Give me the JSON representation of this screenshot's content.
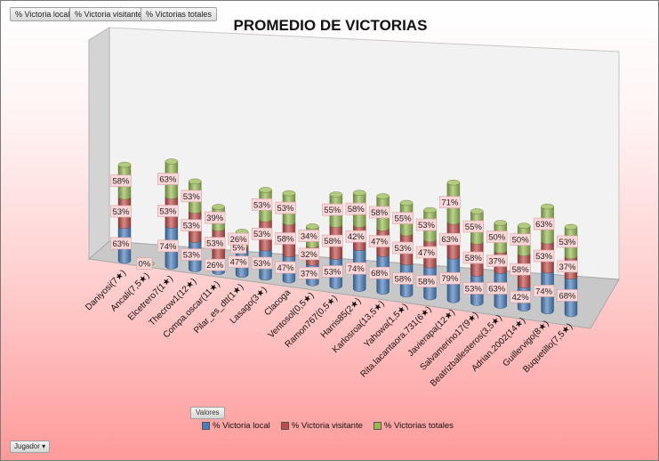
{
  "filters": {
    "f1": "% Victoria local",
    "f2": "% Victoria visitante",
    "f3": "% Victorias totales",
    "row_field": "Jugador",
    "values_button": "Valores"
  },
  "colors": {
    "local": "#4a7ebb",
    "visitante": "#be4b48",
    "totales": "#98b954"
  },
  "chart_data": {
    "type": "bar",
    "subtype": "3d-stacked-column",
    "title": "PROMEDIO DE VICTORIAS",
    "legend_position": "bottom",
    "categories": [
      "Daniyosi(7★)",
      "Ancali(7,5★)",
      "Elcetrero7(1★)",
      "Thecrow1(12★)",
      "Compa.oscar(11★)",
      "Pilar_es_dtt(1★)",
      "Lasago(3★)",
      "Clacoga",
      "Ventosol(0,5★)",
      "Ramon767(0,5★)",
      "Harris85(2★)",
      "Karlosroa(13,5★)",
      "Yahowa(1,5★)",
      "Rita.lacantaora.731(6★)",
      "Javierapa(12★)",
      "Salvamerino17(9★)",
      "Beatrizballesteros(3,5★)",
      "Adrian.2002(14★)",
      "Guillervigo(8★)",
      "Buquetillo(7,5★)"
    ],
    "series": [
      {
        "name": "% Victoria local",
        "values": [
          "63%",
          "0%",
          "74%",
          "53%",
          "26%",
          "47%",
          "53%",
          "47%",
          "37%",
          "53%",
          "74%",
          "68%",
          "58%",
          "58%",
          "79%",
          "53%",
          "63%",
          "42%",
          "74%",
          "68%"
        ]
      },
      {
        "name": "% Victoria visitante",
        "values": [
          "53%",
          "",
          "53%",
          "53%",
          "53%",
          "5%",
          "53%",
          "58%",
          "32%",
          "58%",
          "42%",
          "47%",
          "53%",
          "47%",
          "63%",
          "58%",
          "37%",
          "58%",
          "53%",
          "37%"
        ]
      },
      {
        "name": "% Victorias totales",
        "values": [
          "58%",
          "",
          "63%",
          "53%",
          "39%",
          "26%",
          "53%",
          "53%",
          "34%",
          "55%",
          "58%",
          "58%",
          "55%",
          "53%",
          "71%",
          "55%",
          "50%",
          "50%",
          "63%",
          "53%"
        ]
      }
    ]
  }
}
